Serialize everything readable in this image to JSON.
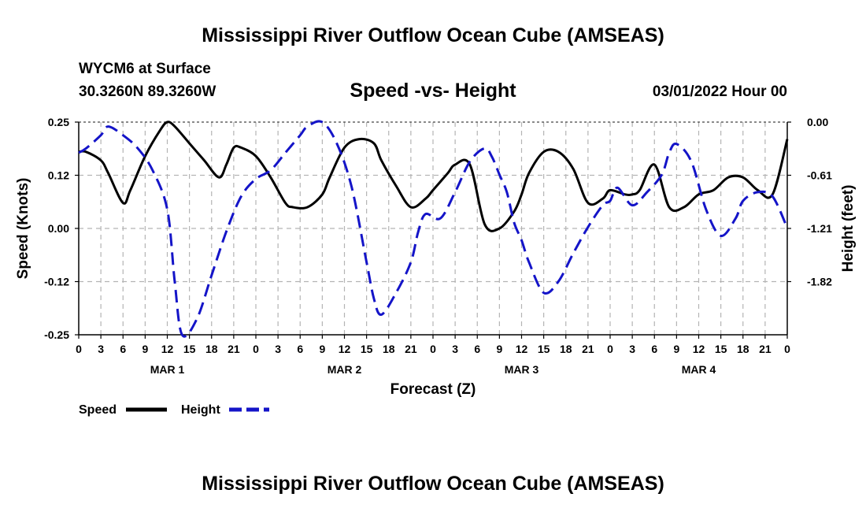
{
  "header": {
    "title": "Mississippi River Outflow Ocean Cube (AMSEAS)",
    "station": "WYCM6 at Surface",
    "coords": "30.3260N  89.3260W",
    "subtitle": "Speed -vs- Height",
    "datetime": "03/01/2022 Hour 00",
    "bottom_title": "Mississippi River Outflow Ocean Cube (AMSEAS)"
  },
  "chart_data": {
    "type": "line",
    "title": "Speed -vs- Height",
    "xlabel": "Forecast (Z)",
    "ylabel": "Speed (Knots)",
    "y2label": "Height (feet)",
    "xlim": [
      0,
      96
    ],
    "ylim": [
      -0.25,
      0.25
    ],
    "y2lim": [
      -2.43,
      0.0
    ],
    "x_tick_labels": [
      "0",
      "3",
      "6",
      "9",
      "12",
      "15",
      "18",
      "21",
      "0",
      "3",
      "6",
      "9",
      "12",
      "15",
      "18",
      "21",
      "0",
      "3",
      "6",
      "9",
      "12",
      "15",
      "18",
      "21",
      "0",
      "3",
      "6",
      "9",
      "12",
      "15",
      "18",
      "21",
      "0"
    ],
    "y_ticks": [
      "0.25",
      "0.12",
      "0.00",
      "-0.12",
      "-0.25"
    ],
    "y2_ticks": [
      "0.00",
      "-0.61",
      "-1.21",
      "-1.82"
    ],
    "date_labels": [
      {
        "text": "MAR 1",
        "hour": 12
      },
      {
        "text": "MAR 2",
        "hour": 36
      },
      {
        "text": "MAR 3",
        "hour": 60
      },
      {
        "text": "MAR 4",
        "hour": 84
      }
    ],
    "grid": true,
    "legend_position": "bottom-left",
    "series": [
      {
        "name": "Speed",
        "axis": "left",
        "color": "#000000",
        "style": "solid",
        "x": [
          0,
          1,
          3,
          4,
          6,
          7,
          9,
          11,
          12,
          13,
          15,
          17,
          19,
          20,
          21,
          22,
          24,
          26,
          28,
          29,
          31,
          33,
          34,
          36,
          38,
          40,
          41,
          43,
          45,
          47,
          48,
          50,
          51,
          53,
          55,
          57,
          59,
          60,
          61,
          63,
          65,
          67,
          69,
          71,
          72,
          74,
          75,
          76,
          78,
          80,
          82,
          84,
          86,
          88,
          90,
          92,
          94,
          96
        ],
        "values": [
          0.18,
          0.18,
          0.16,
          0.13,
          0.06,
          0.09,
          0.17,
          0.23,
          0.25,
          0.24,
          0.2,
          0.16,
          0.12,
          0.15,
          0.19,
          0.19,
          0.17,
          0.12,
          0.06,
          0.05,
          0.05,
          0.08,
          0.12,
          0.19,
          0.21,
          0.2,
          0.16,
          0.1,
          0.05,
          0.07,
          0.09,
          0.13,
          0.15,
          0.15,
          0.01,
          0.0,
          0.04,
          0.08,
          0.13,
          0.18,
          0.18,
          0.14,
          0.06,
          0.07,
          0.09,
          0.08,
          0.08,
          0.09,
          0.15,
          0.05,
          0.05,
          0.08,
          0.09,
          0.12,
          0.12,
          0.09,
          0.08,
          0.21
        ]
      },
      {
        "name": "Height",
        "axis": "right",
        "color": "#1414c8",
        "style": "dashed",
        "x": [
          0,
          1,
          3,
          4,
          6,
          8,
          10,
          12,
          13,
          14,
          16,
          18,
          20,
          22,
          24,
          26,
          28,
          30,
          31,
          33,
          35,
          37,
          39,
          40,
          41,
          43,
          45,
          46,
          47,
          49,
          51,
          53,
          55,
          56,
          57,
          58,
          59,
          60,
          61,
          63,
          65,
          67,
          69,
          71,
          72,
          73,
          75,
          77,
          79,
          80,
          81,
          83,
          85,
          87,
          89,
          90,
          92,
          94,
          96
        ],
        "values": [
          -0.35,
          -0.3,
          -0.15,
          -0.05,
          -0.15,
          -0.3,
          -0.55,
          -1.0,
          -1.82,
          -2.43,
          -2.25,
          -1.75,
          -1.25,
          -0.85,
          -0.65,
          -0.55,
          -0.35,
          -0.15,
          -0.05,
          0.0,
          -0.25,
          -0.75,
          -1.6,
          -2.02,
          -2.2,
          -1.95,
          -1.6,
          -1.25,
          -1.05,
          -1.1,
          -0.8,
          -0.45,
          -0.3,
          -0.4,
          -0.6,
          -0.8,
          -1.15,
          -1.35,
          -1.6,
          -1.95,
          -1.82,
          -1.5,
          -1.2,
          -0.95,
          -0.9,
          -0.75,
          -0.95,
          -0.8,
          -0.6,
          -0.35,
          -0.25,
          -0.45,
          -1.0,
          -1.3,
          -1.1,
          -0.9,
          -0.8,
          -0.85,
          -1.21
        ]
      }
    ]
  }
}
